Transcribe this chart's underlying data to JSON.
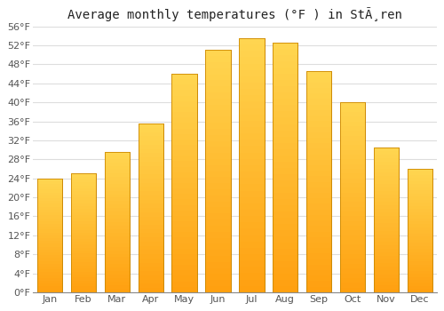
{
  "title": "Average monthly temperatures (°F ) in StÃ¸ren",
  "months": [
    "Jan",
    "Feb",
    "Mar",
    "Apr",
    "May",
    "Jun",
    "Jul",
    "Aug",
    "Sep",
    "Oct",
    "Nov",
    "Dec"
  ],
  "values": [
    24.0,
    25.0,
    29.5,
    35.5,
    46.0,
    51.0,
    53.5,
    52.5,
    46.5,
    40.0,
    30.5,
    26.0
  ],
  "ylim": [
    0,
    56
  ],
  "yticks": [
    0,
    4,
    8,
    12,
    16,
    20,
    24,
    28,
    32,
    36,
    40,
    44,
    48,
    52,
    56
  ],
  "ytick_labels": [
    "0°F",
    "4°F",
    "8°F",
    "12°F",
    "16°F",
    "20°F",
    "24°F",
    "28°F",
    "32°F",
    "36°F",
    "40°F",
    "44°F",
    "48°F",
    "52°F",
    "56°F"
  ],
  "bar_color_bottom": "#FFA520",
  "bar_color_top": "#FFD050",
  "bar_edge_color": "#CC8800",
  "background_color": "#ffffff",
  "plot_bg_color": "#ffffff",
  "grid_color": "#dddddd",
  "title_fontsize": 10,
  "tick_fontsize": 8,
  "bar_width": 0.75,
  "figsize": [
    5.0,
    3.5
  ],
  "dpi": 100
}
